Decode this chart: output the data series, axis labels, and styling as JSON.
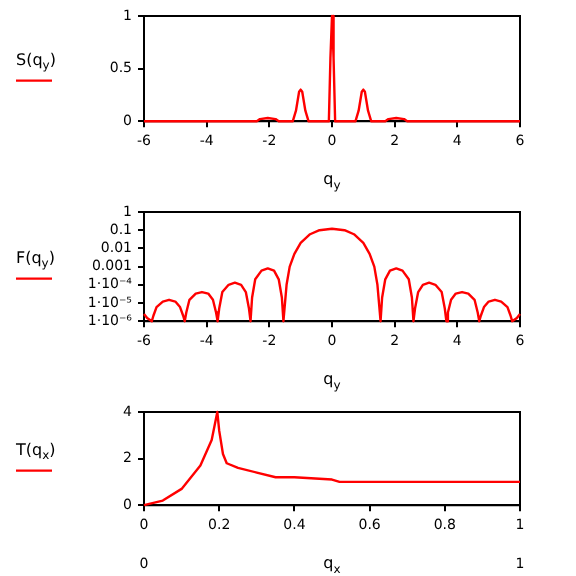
{
  "chart_data": [
    {
      "type": "line",
      "xlabel": "q$_{y}$",
      "ylabel": "S(q$_{y}$)",
      "xlim": [
        -6,
        6
      ],
      "xticks": [
        -6,
        -4,
        -2,
        0,
        2,
        4,
        6
      ],
      "ylim": [
        0,
        1
      ],
      "yticks": [
        0,
        0.5,
        1
      ],
      "grid": false,
      "legend": false,
      "marker": "none",
      "line_style": "solid",
      "series": [
        {
          "color": "#ff0000",
          "x": [
            -6,
            -2.4,
            -2.3,
            -2.05,
            -1.8,
            -1.7,
            -1.25,
            -1.15,
            -1.05,
            -1,
            -0.95,
            -0.85,
            -0.75,
            -0.1,
            -0.05,
            0,
            0.05,
            0.1,
            0.75,
            0.85,
            0.95,
            1,
            1.05,
            1.15,
            1.25,
            1.7,
            1.8,
            2.05,
            2.3,
            2.4,
            6
          ],
          "values": [
            0,
            0,
            0.02,
            0.03,
            0.02,
            0,
            0,
            0.1,
            0.28,
            0.3,
            0.28,
            0.1,
            0,
            0,
            0.6,
            1,
            0.6,
            0,
            0,
            0.1,
            0.28,
            0.3,
            0.28,
            0.1,
            0,
            0,
            0.02,
            0.03,
            0.02,
            0,
            0
          ]
        }
      ]
    },
    {
      "type": "line",
      "xlabel": "q$_{y}$",
      "ylabel": "F(q$_{y}$)",
      "xlim": [
        -6,
        6
      ],
      "xticks": [
        -6,
        -4,
        -2,
        0,
        2,
        4,
        6
      ],
      "ylim": [
        1e-06,
        1
      ],
      "log": "y",
      "yticks": [
        1,
        0.1,
        0.01,
        0.001,
        {
          "value": 0.0001,
          "label": "1·10⁻⁴"
        },
        {
          "value": 1e-05,
          "label": "1·10⁻⁵"
        },
        {
          "value": 1e-06,
          "label": "1·10⁻⁶"
        }
      ],
      "grid": false,
      "legend": false,
      "marker": "none",
      "line_style": "solid",
      "series": [
        {
          "color": "#ff0000",
          "x": [
            -6,
            -5.9,
            -5.75,
            -5.7,
            -5.6,
            -5.4,
            -5.2,
            -5,
            -4.85,
            -4.75,
            -4.7,
            -4.65,
            -4.55,
            -4.35,
            -4.15,
            -3.95,
            -3.8,
            -3.7,
            -3.65,
            -3.6,
            -3.5,
            -3.3,
            -3.1,
            -2.9,
            -2.75,
            -2.65,
            -2.6,
            -2.55,
            -2.45,
            -2.25,
            -2.05,
            -1.85,
            -1.7,
            -1.6,
            -1.55,
            -1.45,
            -1.35,
            -1.2,
            -1,
            -0.7,
            -0.4,
            0,
            0.4,
            0.7,
            1,
            1.2,
            1.35,
            1.45,
            1.55,
            1.6,
            1.7,
            1.85,
            2.05,
            2.25,
            2.45,
            2.55,
            2.6,
            2.65,
            2.75,
            2.9,
            3.1,
            3.3,
            3.5,
            3.6,
            3.65,
            3.7,
            3.8,
            3.95,
            4.15,
            4.35,
            4.55,
            4.65,
            4.7,
            4.75,
            4.85,
            5,
            5.2,
            5.4,
            5.6,
            5.7,
            5.75,
            5.9,
            6
          ],
          "values": [
            2.5e-06,
            1.5e-06,
            1e-06,
            2e-06,
            6e-06,
            1.2e-05,
            1.5e-05,
            1.2e-05,
            6e-06,
            2e-06,
            1e-06,
            3e-06,
            1.5e-05,
            3.3e-05,
            4e-05,
            3.3e-05,
            1.5e-05,
            3e-06,
            1e-06,
            5e-06,
            4e-05,
            0.0001,
            0.00013,
            0.0001,
            4e-05,
            5e-06,
            1e-06,
            2e-05,
            0.0002,
            0.0006,
            0.0008,
            0.0006,
            0.0002,
            2e-05,
            1e-06,
            0.0001,
            0.001,
            0.005,
            0.02,
            0.06,
            0.1,
            0.12,
            0.1,
            0.06,
            0.02,
            0.005,
            0.001,
            0.0001,
            1e-06,
            2e-05,
            0.0002,
            0.0006,
            0.0008,
            0.0006,
            0.0002,
            2e-05,
            1e-06,
            5e-06,
            4e-05,
            0.0001,
            0.00013,
            0.0001,
            4e-05,
            5e-06,
            1e-06,
            3e-06,
            1.5e-05,
            3.3e-05,
            4e-05,
            3.3e-05,
            1.5e-05,
            3e-06,
            1e-06,
            2e-06,
            6e-06,
            1.2e-05,
            1.5e-05,
            1.2e-05,
            6e-06,
            2e-06,
            1e-06,
            1.5e-06,
            2.5e-06
          ]
        }
      ]
    },
    {
      "type": "line",
      "xlabel": "q$_{x}$",
      "ylabel": "T(q$_{x}$)",
      "xlim": [
        0,
        1
      ],
      "xticks": [
        0,
        0.2,
        0.4,
        0.6,
        0.8,
        1
      ],
      "ylim": [
        0,
        4
      ],
      "yticks": [
        0,
        2,
        4
      ],
      "grid": false,
      "legend": false,
      "marker": "none",
      "line_style": "solid",
      "annotations": [
        "0",
        "1"
      ],
      "series": [
        {
          "color": "#ff0000",
          "x": [
            0,
            0.05,
            0.1,
            0.15,
            0.18,
            0.195,
            0.2,
            0.21,
            0.22,
            0.25,
            0.3,
            0.35,
            0.4,
            0.5,
            0.52,
            1
          ],
          "values": [
            0,
            0.2,
            0.7,
            1.7,
            2.8,
            4,
            3.2,
            2.2,
            1.8,
            1.6,
            1.4,
            1.2,
            1.2,
            1.1,
            1,
            1
          ]
        }
      ]
    }
  ]
}
